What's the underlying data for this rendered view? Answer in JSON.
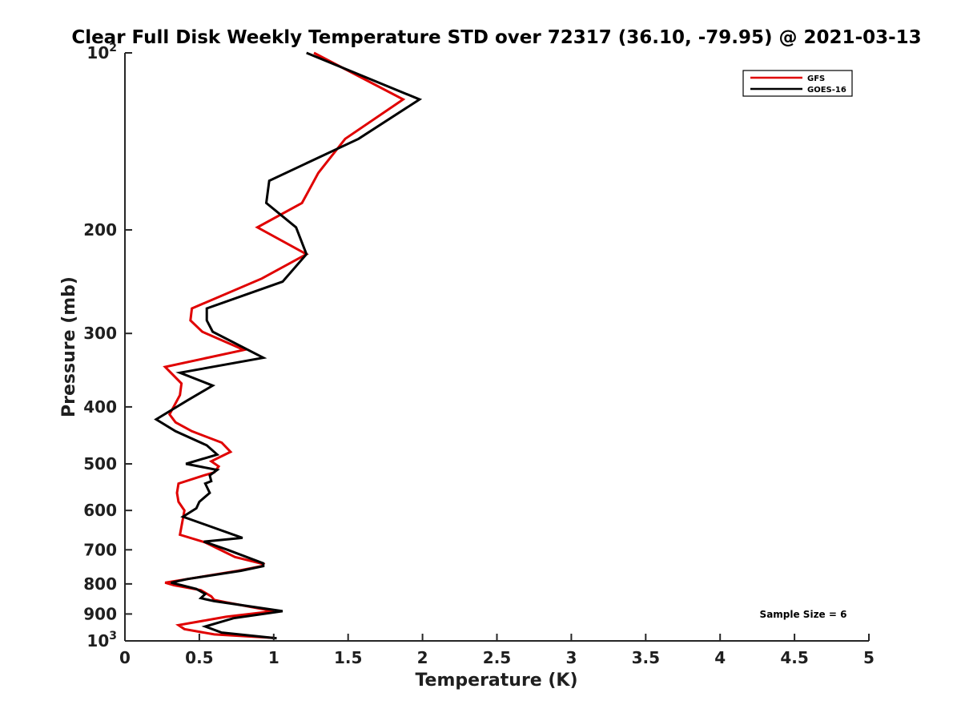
{
  "chart_data": {
    "type": "line",
    "title": "Clear Full Disk Weekly Temperature STD over 72317 (36.10, -79.95) @ 2021-03-13",
    "xlabel": "Temperature (K)",
    "ylabel": "Pressure (mb)",
    "xlim": [
      0,
      5
    ],
    "ylim": [
      100,
      1000
    ],
    "y_scale": "log",
    "y_reversed": true,
    "grid": false,
    "legend_position": "top-right",
    "x_ticks": [
      0,
      0.5,
      1,
      1.5,
      2,
      2.5,
      3,
      3.5,
      4,
      4.5,
      5
    ],
    "x_tick_labels": [
      "0",
      "0.5",
      "1",
      "1.5",
      "2",
      "2.5",
      "3",
      "3.5",
      "4",
      "4.5",
      "5"
    ],
    "y_ticks": [
      100,
      200,
      300,
      400,
      500,
      600,
      700,
      800,
      900,
      1000
    ],
    "y_tick_labels": [
      {
        "base": "10",
        "exp": "2"
      },
      {
        "base": "200",
        "exp": ""
      },
      {
        "base": "300",
        "exp": ""
      },
      {
        "base": "400",
        "exp": ""
      },
      {
        "base": "500",
        "exp": ""
      },
      {
        "base": "600",
        "exp": ""
      },
      {
        "base": "700",
        "exp": ""
      },
      {
        "base": "800",
        "exp": ""
      },
      {
        "base": "900",
        "exp": ""
      },
      {
        "base": "10",
        "exp": "3"
      }
    ],
    "annotation": "Sample Size = 6",
    "series": [
      {
        "name": "GFS",
        "color": "#e00000",
        "points": [
          [
            1.27,
            100
          ],
          [
            1.87,
            120
          ],
          [
            1.48,
            140
          ],
          [
            1.3,
            160
          ],
          [
            1.19,
            180
          ],
          [
            0.89,
            198
          ],
          [
            1.22,
            220
          ],
          [
            0.92,
            242
          ],
          [
            0.45,
            272
          ],
          [
            0.44,
            285
          ],
          [
            0.52,
            298
          ],
          [
            0.8,
            320
          ],
          [
            0.27,
            342
          ],
          [
            0.38,
            365
          ],
          [
            0.37,
            382
          ],
          [
            0.3,
            412
          ],
          [
            0.34,
            425
          ],
          [
            0.45,
            440
          ],
          [
            0.65,
            460
          ],
          [
            0.71,
            477
          ],
          [
            0.58,
            495
          ],
          [
            0.63,
            505
          ],
          [
            0.6,
            517
          ],
          [
            0.53,
            523
          ],
          [
            0.36,
            540
          ],
          [
            0.35,
            560
          ],
          [
            0.36,
            580
          ],
          [
            0.4,
            600
          ],
          [
            0.37,
            660
          ],
          [
            0.54,
            680
          ],
          [
            0.74,
            720
          ],
          [
            0.93,
            740
          ],
          [
            0.92,
            746
          ],
          [
            0.76,
            760
          ],
          [
            0.42,
            785
          ],
          [
            0.27,
            796
          ],
          [
            0.33,
            804
          ],
          [
            0.51,
            820
          ],
          [
            0.58,
            840
          ],
          [
            0.6,
            852
          ],
          [
            0.68,
            860
          ],
          [
            1.0,
            890
          ],
          [
            0.68,
            910
          ],
          [
            0.36,
            940
          ],
          [
            0.4,
            955
          ],
          [
            0.6,
            975
          ],
          [
            1.0,
            988
          ]
        ]
      },
      {
        "name": "GOES-16",
        "color": "#000000",
        "points": [
          [
            1.22,
            100
          ],
          [
            1.98,
            120
          ],
          [
            1.57,
            140
          ],
          [
            0.97,
            165
          ],
          [
            0.95,
            180
          ],
          [
            1.15,
            198
          ],
          [
            1.22,
            220
          ],
          [
            1.06,
            245
          ],
          [
            0.55,
            272
          ],
          [
            0.55,
            285
          ],
          [
            0.59,
            298
          ],
          [
            0.93,
            330
          ],
          [
            0.37,
            350
          ],
          [
            0.59,
            368
          ],
          [
            0.42,
            390
          ],
          [
            0.21,
            420
          ],
          [
            0.34,
            440
          ],
          [
            0.55,
            465
          ],
          [
            0.62,
            482
          ],
          [
            0.41,
            500
          ],
          [
            0.62,
            512
          ],
          [
            0.57,
            523
          ],
          [
            0.58,
            535
          ],
          [
            0.54,
            540
          ],
          [
            0.57,
            560
          ],
          [
            0.5,
            580
          ],
          [
            0.48,
            595
          ],
          [
            0.39,
            615
          ],
          [
            0.79,
            668
          ],
          [
            0.53,
            678
          ],
          [
            0.69,
            700
          ],
          [
            0.93,
            738
          ],
          [
            0.93,
            746
          ],
          [
            0.78,
            760
          ],
          [
            0.42,
            785
          ],
          [
            0.31,
            796
          ],
          [
            0.38,
            804
          ],
          [
            0.48,
            816
          ],
          [
            0.54,
            832
          ],
          [
            0.51,
            846
          ],
          [
            0.6,
            856
          ],
          [
            1.06,
            890
          ],
          [
            0.73,
            915
          ],
          [
            0.54,
            945
          ],
          [
            0.65,
            968
          ],
          [
            1.02,
            990
          ]
        ]
      }
    ]
  }
}
